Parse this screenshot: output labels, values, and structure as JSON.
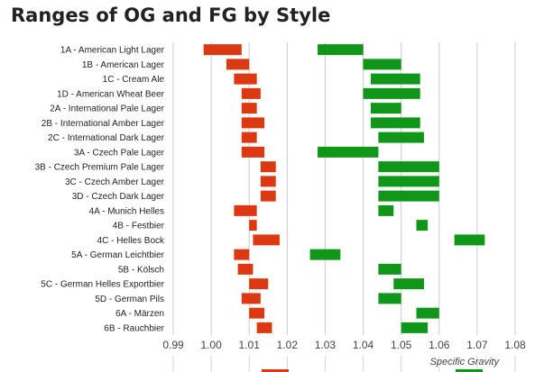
{
  "page_title": "Ranges of OG and FG by Style",
  "chart_data": {
    "type": "bar",
    "title": "Ranges of OG and FG by Style",
    "xlabel": "Specific Gravity",
    "ylabel": "",
    "xlim": [
      0.99,
      1.08
    ],
    "xticks": [
      "0.99",
      "1.00",
      "1.01",
      "1.02",
      "1.03",
      "1.04",
      "1.05",
      "1.06",
      "1.07",
      "1.08"
    ],
    "grid": true,
    "legend_position": "bottom",
    "categories": [
      "1A - American Light Lager",
      "1B - American Lager",
      "1C - Cream Ale",
      "1D - American Wheat Beer",
      "2A - International Pale Lager",
      "2B - International Amber Lager",
      "2C - International Dark Lager",
      "3A - Czech Pale Lager",
      "3B - Czech Premium Pale Lager",
      "3C - Czech Amber Lager",
      "3D - Czech Dark Lager",
      "4A - Munich Helles",
      "4B - Festbier",
      "4C - Helles Bock",
      "5A - German Leichtbier",
      "5B - Kölsch",
      "5C - German Helles Exportbier",
      "5D - German Pils",
      "6A - Märzen",
      "6B - Rauchbier"
    ],
    "series": [
      {
        "color": "#dc3912",
        "ranges": [
          [
            0.998,
            1.008
          ],
          [
            1.004,
            1.01
          ],
          [
            1.006,
            1.012
          ],
          [
            1.008,
            1.013
          ],
          [
            1.008,
            1.012
          ],
          [
            1.008,
            1.014
          ],
          [
            1.008,
            1.012
          ],
          [
            1.008,
            1.014
          ],
          [
            1.013,
            1.017
          ],
          [
            1.013,
            1.017
          ],
          [
            1.013,
            1.017
          ],
          [
            1.006,
            1.012
          ],
          [
            1.01,
            1.012
          ],
          [
            1.011,
            1.018
          ],
          [
            1.006,
            1.01
          ],
          [
            1.007,
            1.011
          ],
          [
            1.01,
            1.015
          ],
          [
            1.008,
            1.013
          ],
          [
            1.01,
            1.014
          ],
          [
            1.012,
            1.016
          ]
        ]
      },
      {
        "color": "#109618",
        "ranges": [
          [
            1.028,
            1.04
          ],
          [
            1.04,
            1.05
          ],
          [
            1.042,
            1.055
          ],
          [
            1.04,
            1.055
          ],
          [
            1.042,
            1.05
          ],
          [
            1.042,
            1.055
          ],
          [
            1.044,
            1.056
          ],
          [
            1.028,
            1.044
          ],
          [
            1.044,
            1.06
          ],
          [
            1.044,
            1.06
          ],
          [
            1.044,
            1.06
          ],
          [
            1.044,
            1.048
          ],
          [
            1.054,
            1.057
          ],
          [
            1.064,
            1.072
          ],
          [
            1.026,
            1.034
          ],
          [
            1.044,
            1.05
          ],
          [
            1.048,
            1.056
          ],
          [
            1.044,
            1.05
          ],
          [
            1.054,
            1.06
          ],
          [
            1.05,
            1.057
          ]
        ]
      }
    ]
  }
}
